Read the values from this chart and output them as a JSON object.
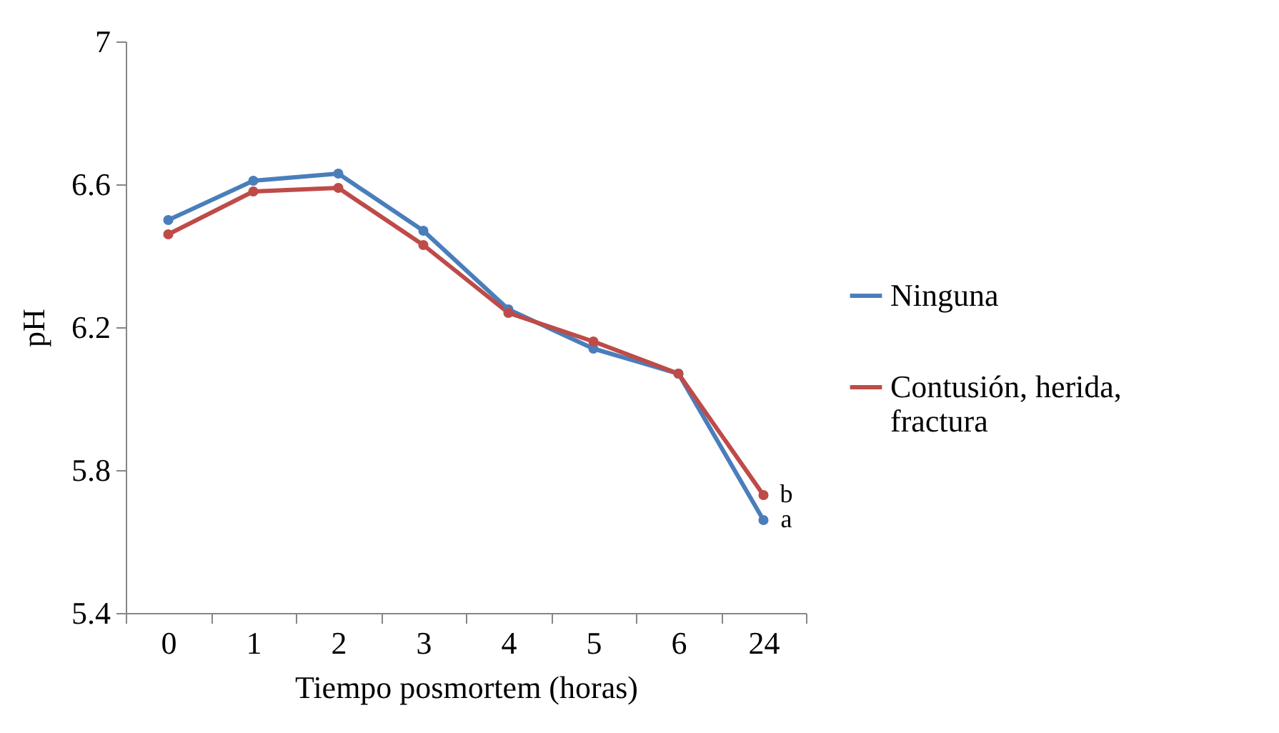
{
  "chart_data": {
    "type": "line",
    "xlabel": "Tiempo posmortem (horas)",
    "ylabel": "pH",
    "categories": [
      "0",
      "1",
      "2",
      "3",
      "4",
      "5",
      "6",
      "24"
    ],
    "series": [
      {
        "name": "Ninguna",
        "color": "#4a7ebb",
        "values": [
          6.5,
          6.61,
          6.63,
          6.47,
          6.25,
          6.14,
          6.07,
          5.66
        ]
      },
      {
        "name": "Contusión, herida, fractura",
        "color": "#be4b48",
        "values": [
          6.46,
          6.58,
          6.59,
          6.43,
          6.24,
          6.16,
          6.07,
          5.73
        ]
      }
    ],
    "ylim": [
      5.4,
      7
    ],
    "yticks": [
      5.4,
      5.8,
      6.2,
      6.6,
      7
    ],
    "grid": false,
    "legend": "right",
    "marker": "circle",
    "line_style": "solid",
    "annotations": [
      {
        "text": "a",
        "x": "24",
        "y": 5.66
      },
      {
        "text": "b",
        "x": "24",
        "y": 5.73
      }
    ]
  }
}
